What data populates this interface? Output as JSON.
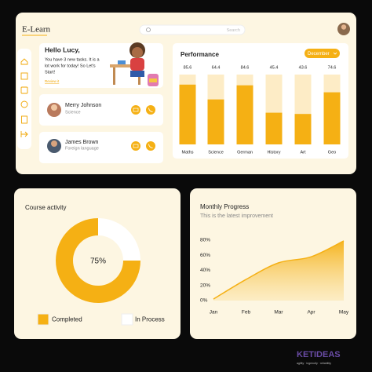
{
  "header": {
    "logo": "E-Learn",
    "search_placeholder": "Search"
  },
  "greeting": {
    "title": "Hello Lucy,",
    "message_lines": [
      "You have 3 new tasks. It is a",
      "lot work for today! So Let's",
      "Start!"
    ],
    "link": "Review it"
  },
  "teachers": [
    {
      "name": "Merry Johnson",
      "subject": "Science"
    },
    {
      "name": "James Brown",
      "subject": "Foreign language"
    }
  ],
  "chart_data": [
    {
      "type": "bar",
      "title": "Performance",
      "filter": "December",
      "categories": [
        "Maths",
        "Science",
        "German",
        "History",
        "Art",
        "Geo"
      ],
      "values": [
        85.6,
        64.4,
        84.6,
        45.4,
        43.6,
        74.6
      ],
      "color": "#f5b014",
      "track_color": "#fdecc6",
      "ylim": [
        0,
        100
      ]
    },
    {
      "type": "donut",
      "title": "Course activity",
      "categories": [
        "Completed",
        "In Process"
      ],
      "values": [
        75,
        25
      ],
      "value_labels": [
        "75%",
        null
      ],
      "colors": [
        "#f5b014",
        "#ffffff"
      ]
    },
    {
      "type": "area",
      "title": "Monthly Progress",
      "subtitle": "This is the latest improvement",
      "categories": [
        "Jan",
        "Feb",
        "Mar",
        "Apr",
        "May"
      ],
      "values": [
        2,
        28,
        50,
        58,
        79
      ],
      "color": "#f5b014",
      "ylim": [
        0,
        80
      ],
      "yticks": [
        {
          "value": 0,
          "label": "0%"
        },
        {
          "value": 20,
          "label": "20%"
        },
        {
          "value": 40,
          "label": "40%"
        },
        {
          "value": 60,
          "label": "60%"
        },
        {
          "value": 80,
          "label": "80%"
        }
      ]
    }
  ],
  "watermark": {
    "brand": "KETIDEAS",
    "tagline": "agility · ingenuity · reliability"
  }
}
